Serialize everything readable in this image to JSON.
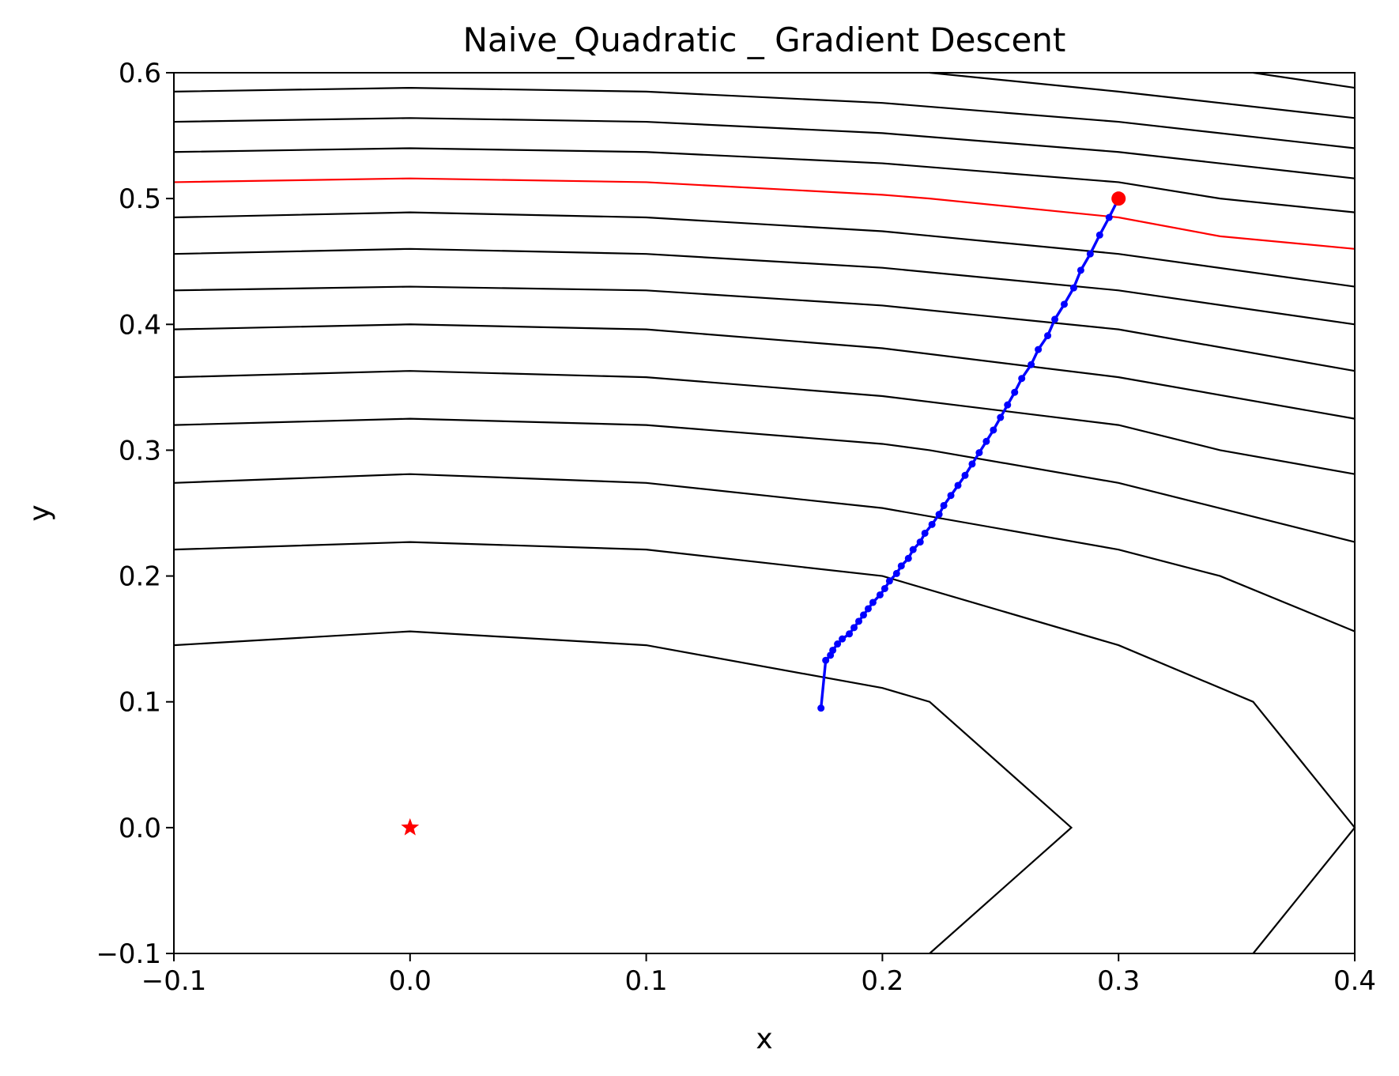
{
  "chart_data": {
    "type": "line",
    "title": "Naive_Quadratic _ Gradient Descent",
    "xlabel": "x",
    "ylabel": "y",
    "xlim": [
      -0.1,
      0.4
    ],
    "ylim": [
      -0.1,
      0.6
    ],
    "x_ticks": [
      "−0.1",
      "0.0",
      "0.1",
      "0.2",
      "0.3",
      "0.4"
    ],
    "y_ticks": [
      "−0.1",
      "0.0",
      "0.1",
      "0.2",
      "0.3",
      "0.4",
      "0.5",
      "0.6"
    ],
    "grid": false,
    "colors": {
      "contour": "#000000",
      "highlight_contour": "#ff0000",
      "path": "#0000ff",
      "start": "#ff0000",
      "optimum": "#ff0000"
    },
    "contours": [
      {
        "points": [
          [
            0.22,
            -0.1
          ],
          [
            0.28,
            0.0
          ],
          [
            0.22,
            0.1
          ],
          [
            0.2,
            0.111
          ],
          [
            0.1,
            0.145
          ],
          [
            0.0,
            0.156
          ],
          [
            -0.1,
            0.145
          ]
        ]
      },
      {
        "points": [
          [
            0.357,
            -0.1
          ],
          [
            0.4,
            0.0
          ],
          [
            0.357,
            0.1
          ],
          [
            0.3,
            0.145
          ],
          [
            0.2,
            0.2
          ],
          [
            0.1,
            0.221
          ],
          [
            0.0,
            0.227
          ],
          [
            -0.1,
            0.221
          ]
        ]
      },
      {
        "points": [
          [
            0.4,
            0.156
          ],
          [
            0.343,
            0.2
          ],
          [
            0.3,
            0.221
          ],
          [
            0.2,
            0.254
          ],
          [
            0.1,
            0.274
          ],
          [
            0.0,
            0.281
          ],
          [
            -0.1,
            0.274
          ]
        ]
      },
      {
        "points": [
          [
            0.4,
            0.227
          ],
          [
            0.3,
            0.274
          ],
          [
            0.22,
            0.3
          ],
          [
            0.2,
            0.305
          ],
          [
            0.1,
            0.32
          ],
          [
            0.0,
            0.325
          ],
          [
            -0.1,
            0.32
          ]
        ]
      },
      {
        "points": [
          [
            0.4,
            0.281
          ],
          [
            0.343,
            0.3
          ],
          [
            0.3,
            0.32
          ],
          [
            0.2,
            0.343
          ],
          [
            0.1,
            0.358
          ],
          [
            0.0,
            0.363
          ],
          [
            -0.1,
            0.358
          ]
        ]
      },
      {
        "points": [
          [
            0.4,
            0.325
          ],
          [
            0.3,
            0.358
          ],
          [
            0.2,
            0.381
          ],
          [
            0.1,
            0.396
          ],
          [
            0.0,
            0.4
          ],
          [
            -0.1,
            0.396
          ]
        ]
      },
      {
        "points": [
          [
            0.4,
            0.363
          ],
          [
            0.3,
            0.396
          ],
          [
            0.2,
            0.415
          ],
          [
            0.1,
            0.427
          ],
          [
            0.0,
            0.43
          ],
          [
            -0.1,
            0.427
          ]
        ]
      },
      {
        "points": [
          [
            0.4,
            0.4
          ],
          [
            0.3,
            0.427
          ],
          [
            0.2,
            0.445
          ],
          [
            0.1,
            0.456
          ],
          [
            0.0,
            0.46
          ],
          [
            -0.1,
            0.456
          ]
        ]
      },
      {
        "points": [
          [
            0.4,
            0.43
          ],
          [
            0.3,
            0.456
          ],
          [
            0.2,
            0.474
          ],
          [
            0.1,
            0.485
          ],
          [
            0.0,
            0.489
          ],
          [
            -0.1,
            0.485
          ]
        ]
      },
      {
        "points": [
          [
            0.4,
            0.46
          ],
          [
            0.343,
            0.47
          ],
          [
            0.3,
            0.485
          ],
          [
            0.22,
            0.5
          ],
          [
            0.2,
            0.503
          ],
          [
            0.1,
            0.513
          ],
          [
            0.0,
            0.516
          ],
          [
            -0.1,
            0.513
          ]
        ],
        "highlight": true
      },
      {
        "points": [
          [
            0.4,
            0.489
          ],
          [
            0.343,
            0.5
          ],
          [
            0.3,
            0.513
          ],
          [
            0.2,
            0.528
          ],
          [
            0.1,
            0.537
          ],
          [
            0.0,
            0.54
          ],
          [
            -0.1,
            0.537
          ]
        ]
      },
      {
        "points": [
          [
            0.4,
            0.516
          ],
          [
            0.3,
            0.537
          ],
          [
            0.2,
            0.552
          ],
          [
            0.1,
            0.561
          ],
          [
            0.0,
            0.564
          ],
          [
            -0.1,
            0.561
          ]
        ]
      },
      {
        "points": [
          [
            0.4,
            0.54
          ],
          [
            0.3,
            0.561
          ],
          [
            0.2,
            0.576
          ],
          [
            0.1,
            0.585
          ],
          [
            0.0,
            0.588
          ],
          [
            -0.1,
            0.585
          ]
        ]
      },
      {
        "points": [
          [
            0.4,
            0.564
          ],
          [
            0.3,
            0.585
          ],
          [
            0.22,
            0.6
          ]
        ]
      },
      {
        "points": [
          [
            0.4,
            0.588
          ],
          [
            0.357,
            0.6
          ]
        ]
      }
    ],
    "path": {
      "x": [
        0.3,
        0.296,
        0.292,
        0.288,
        0.284,
        0.281,
        0.277,
        0.273,
        0.27,
        0.266,
        0.263,
        0.259,
        0.256,
        0.253,
        0.25,
        0.247,
        0.244,
        0.241,
        0.238,
        0.235,
        0.232,
        0.229,
        0.226,
        0.224,
        0.221,
        0.218,
        0.216,
        0.213,
        0.211,
        0.208,
        0.206,
        0.203,
        0.201,
        0.199,
        0.196,
        0.194,
        0.192,
        0.19,
        0.188,
        0.186,
        0.183,
        0.181,
        0.179,
        0.178,
        0.176,
        0.174
      ],
      "y": [
        0.5,
        0.485,
        0.471,
        0.456,
        0.443,
        0.429,
        0.416,
        0.404,
        0.391,
        0.38,
        0.368,
        0.357,
        0.346,
        0.336,
        0.326,
        0.316,
        0.307,
        0.298,
        0.289,
        0.28,
        0.272,
        0.264,
        0.256,
        0.249,
        0.241,
        0.234,
        0.227,
        0.221,
        0.214,
        0.208,
        0.202,
        0.196,
        0.19,
        0.185,
        0.179,
        0.174,
        0.169,
        0.164,
        0.159,
        0.154,
        0.15,
        0.146,
        0.141,
        0.137,
        0.133,
        0.095
      ]
    },
    "start": {
      "x": 0.3,
      "y": 0.5
    },
    "optimum": {
      "x": 0.0,
      "y": 0.0
    }
  }
}
